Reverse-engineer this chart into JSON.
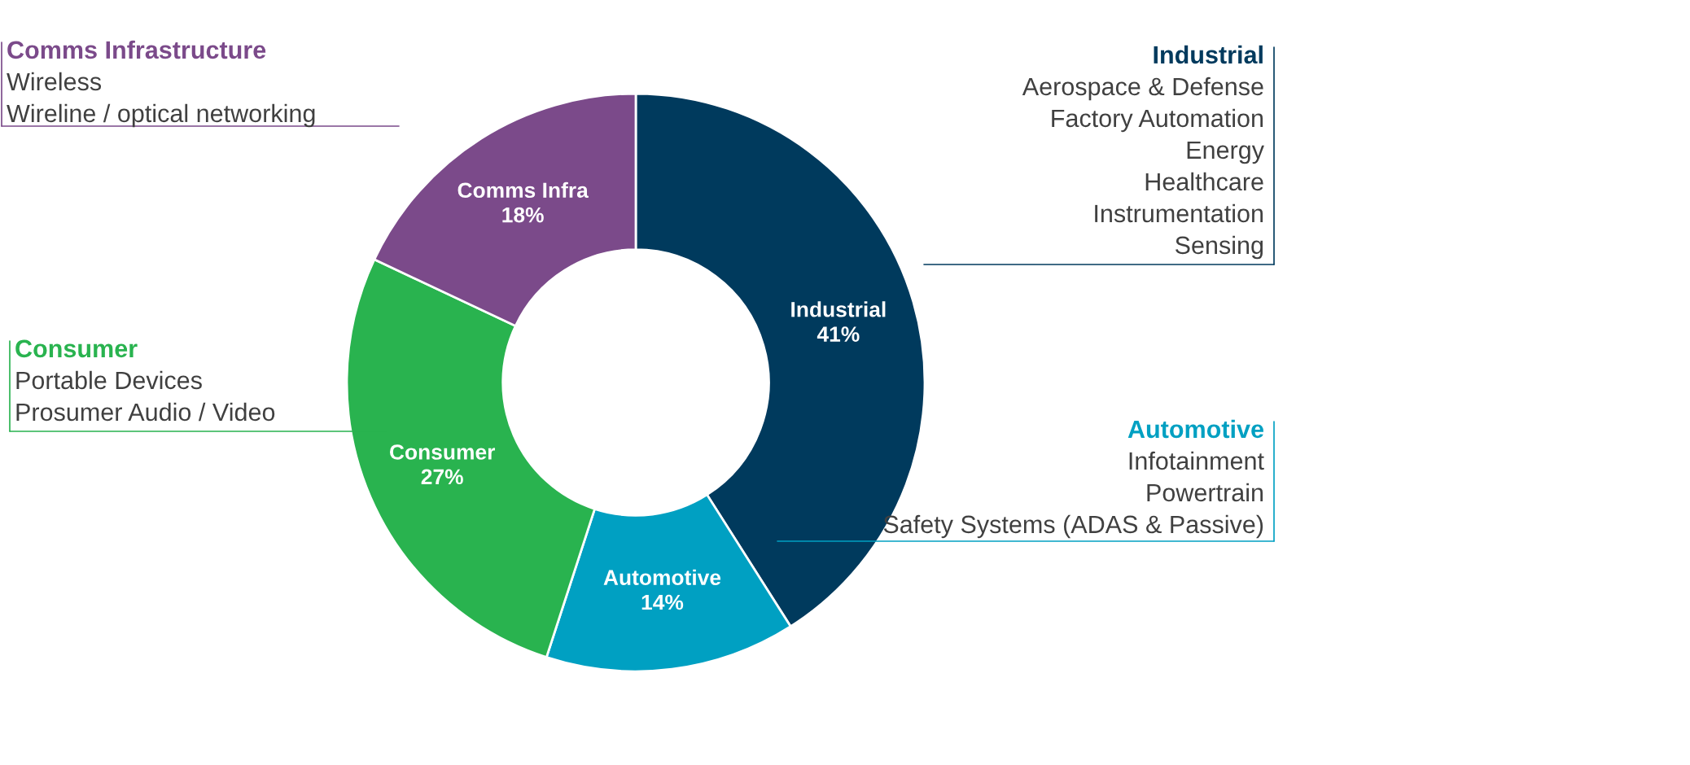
{
  "chart_data": {
    "type": "donut",
    "categories": [
      "Industrial",
      "Automotive",
      "Consumer",
      "Comms Infra"
    ],
    "values": [
      41,
      14,
      27,
      18
    ],
    "value_labels": [
      "41%",
      "14%",
      "27%",
      "18%"
    ],
    "colors": [
      "#003a5d",
      "#00a0c2",
      "#29b34f",
      "#7b4a8a"
    ],
    "annotations": [
      "Industrial\nAerospace & Defense\nFactory Automation\nEnergy\nHealthcare\nInstrumentation\nSensing",
      "Automotive\nInfotainment\nPowertrain\nSafety Systems (ADAS & Passive)",
      "Consumer\nPortable Devices\nProsumer Audio / Video",
      "Comms Infrastructure\nWireless\nWireline / optical networking"
    ]
  }
}
